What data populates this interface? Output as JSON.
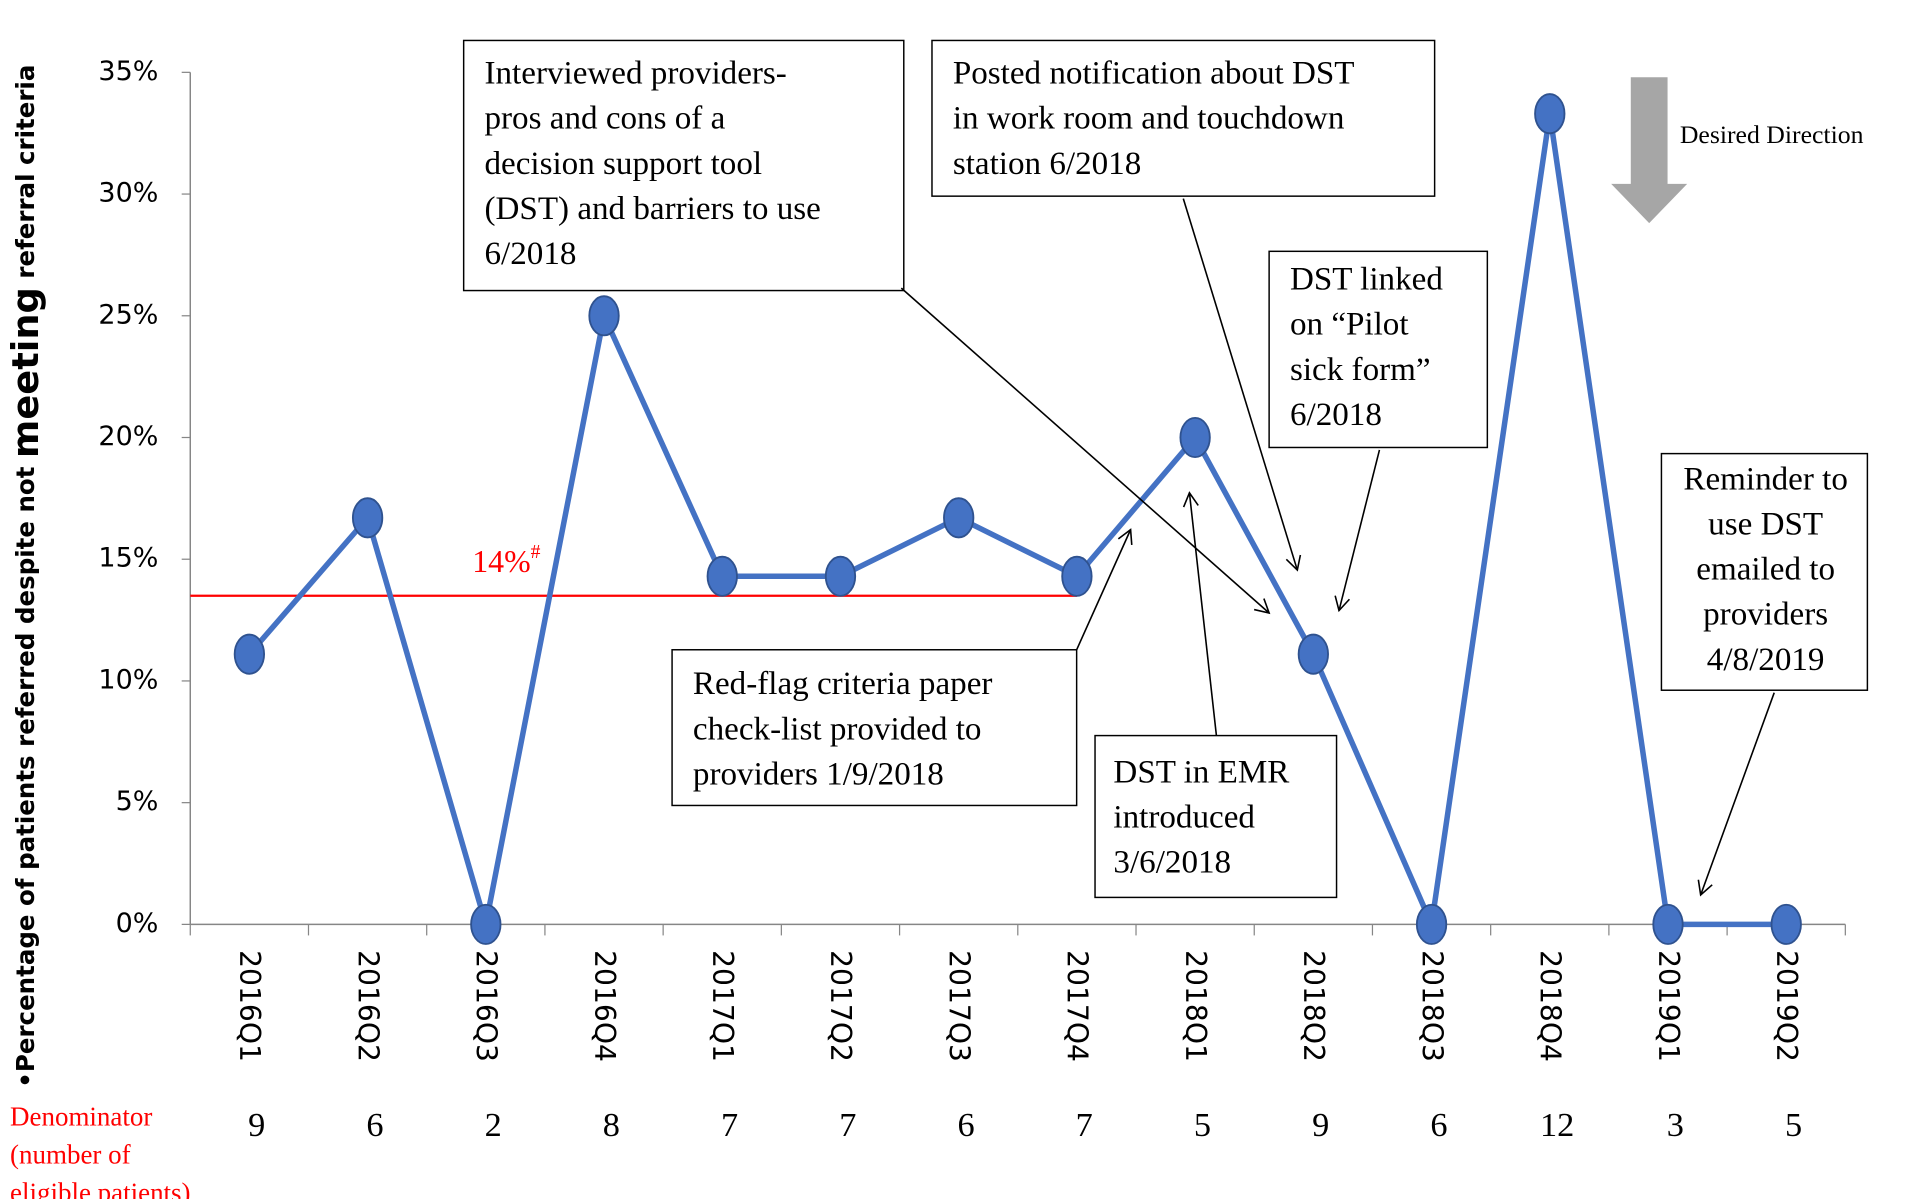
{
  "chart_data": {
    "type": "line",
    "y_label": [
      "•Percentage of patients referred despite not ",
      "meeting",
      " referral criteria"
    ],
    "categories": [
      "2016Q1",
      "2016Q2",
      "2016Q3",
      "2016Q4",
      "2017Q1",
      "2017Q2",
      "2017Q3",
      "2017Q4",
      "2018Q1",
      "2018Q2",
      "2018Q3",
      "2018Q4",
      "2019Q1",
      "2019Q2"
    ],
    "series": [
      {
        "name": "Percentage",
        "color": "#4472c4",
        "values": [
          11.1,
          16.7,
          0,
          25,
          14.3,
          14.3,
          16.7,
          14.3,
          20,
          11.1,
          0,
          33.3,
          0,
          0
        ]
      }
    ],
    "ylim": [
      0,
      35
    ],
    "yticks": [
      {
        "value": 0,
        "label": "0%"
      },
      {
        "value": 5,
        "label": "5%"
      },
      {
        "value": 10,
        "label": "10%"
      },
      {
        "value": 15,
        "label": "15%"
      },
      {
        "value": 20,
        "label": "20%"
      },
      {
        "value": 25,
        "label": "25%"
      },
      {
        "value": 30,
        "label": "30%"
      },
      {
        "value": 35,
        "label": "35%"
      }
    ],
    "reference_line": {
      "value": 13.5,
      "label": "14%",
      "sup": "#",
      "color": "#ff0000",
      "end_category": "2017Q4"
    },
    "denominator_label": [
      "Denominator",
      "(number of",
      "eligible patients)"
    ],
    "denominators": [
      9,
      6,
      2,
      8,
      7,
      7,
      6,
      7,
      5,
      9,
      6,
      12,
      3,
      5
    ],
    "desired_direction": "Desired Direction",
    "annotations": [
      {
        "lines": [
          "Interviewed providers-",
          "pros and cons of a",
          "decision support tool",
          "(DST) and barriers to use",
          "6/2018"
        ]
      },
      {
        "lines": [
          "Posted notification about DST",
          "in work room and touchdown",
          "station 6/2018"
        ]
      },
      {
        "lines": [
          "DST linked",
          "on “Pilot",
          "sick form”",
          "6/2018"
        ]
      },
      {
        "lines": [
          "Reminder to",
          "use DST",
          "emailed to",
          "providers",
          "4/8/2019"
        ]
      },
      {
        "lines": [
          "Red-flag criteria paper",
          "check-list provided to",
          "providers 1/9/2018"
        ]
      },
      {
        "lines": [
          "DST in EMR",
          "introduced",
          "3/6/2018"
        ]
      }
    ]
  }
}
